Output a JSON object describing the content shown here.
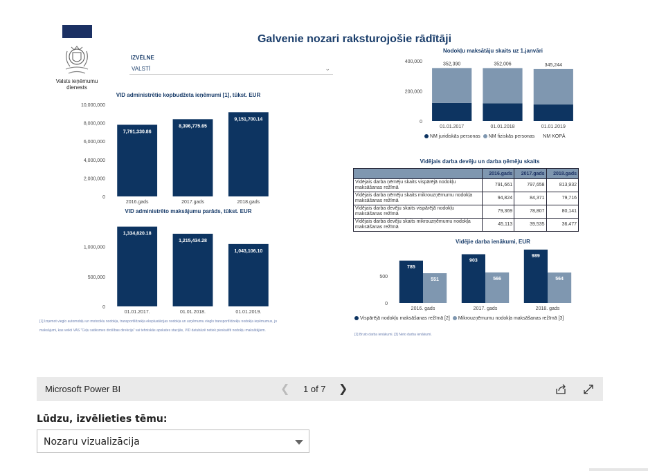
{
  "report": {
    "title": "Galvenie nozari raksturojošie rādītāji",
    "org_name": "Valsts ieņēmumu dienests",
    "selector": {
      "label": "IZVĒLNE",
      "value": "VALSTĪ"
    },
    "footnote_left_1": "[1] Izņemot vieglo automobiļu un motociklu nodokļa, transportlīdzekļa ekspluatācijas nodokļa un uzņēmumu vieglo transportlīdzekļu nodokļa ieņēmumus, jo",
    "footnote_left_2": "maksājumi, kas veikti VAS \"Ceļu satiksmes drošības direkcija\" vai tehniskās apskates stacijās, VID datubāzē netiek pieskaitīti nodokļu maksātājiem.",
    "footnote_right": "[2] Bruto darba ienākumi.    [3] Neto darba ienākumi.",
    "table": {
      "title": "Vidējais darba devēju un darba ņēmēju skaits",
      "headers": [
        "",
        "2016.gads",
        "2017.gads",
        "2018.gads"
      ],
      "rows": [
        {
          "label": "Vidējais darba ņēmēju skaits vispārējā nodokļu maksāšanas režīmā",
          "v": [
            "791,661",
            "797,658",
            "813,932"
          ]
        },
        {
          "label": "Vidējais darba ņēmēju skaits mikrouzņēmumu nodokļa maksāšanas režīmā",
          "v": [
            "94,824",
            "84,371",
            "79,716"
          ]
        },
        {
          "label": "Vidējais darba devēju skaits vispārējā nodokļu maksāšanas režīmā",
          "v": [
            "79,369",
            "78,807",
            "80,141"
          ]
        },
        {
          "label": "Vidējais darba devēju skaits mikrouzņēmumu nodokļa maksāšanas režīmā",
          "v": [
            "45,113",
            "39,535",
            "36,477"
          ]
        }
      ]
    }
  },
  "chart_data": [
    {
      "type": "bar",
      "title": "VID administrētie kopbudžeta ieņēmumi [1], tūkst. EUR",
      "categories": [
        "2016.gads",
        "2017.gads",
        "2018.gads"
      ],
      "values": [
        7791330.86,
        8396775.65,
        9151700.14
      ],
      "value_labels": [
        "7,791,330.86",
        "8,396,775.65",
        "9,151,700.14"
      ],
      "ylim": [
        0,
        10000000
      ],
      "yticks": [
        0,
        2000000,
        4000000,
        6000000,
        8000000,
        10000000
      ],
      "ytick_labels": [
        "0",
        "2,000,000",
        "4,000,000",
        "6,000,000",
        "8,000,000",
        "10,000,000"
      ],
      "color": "#0d3461"
    },
    {
      "type": "bar",
      "title": "VID administrēto maksājumu parāds, tūkst. EUR",
      "categories": [
        "01.01.2017.",
        "01.01.2018.",
        "01.01.2019."
      ],
      "values": [
        1334820.18,
        1215434.28,
        1043106.1
      ],
      "value_labels": [
        "1,334,820.18",
        "1,215,434.28",
        "1,043,106.10"
      ],
      "ylim": [
        0,
        1400000
      ],
      "yticks": [
        0,
        500000,
        1000000
      ],
      "ytick_labels": [
        "0",
        "500,000",
        "1,000,000"
      ],
      "color": "#0d3461"
    },
    {
      "type": "bar",
      "stacked": true,
      "title": "Nodokļu maksātāju skaits uz 1.janvāri",
      "categories": [
        "01.01.2017",
        "01.01.2018",
        "01.01.2019"
      ],
      "series": [
        {
          "name": "NM juridiskās personas",
          "values": [
            120000,
            118000,
            110000
          ],
          "color": "#0d3461"
        },
        {
          "name": "NM fiziskās personas",
          "values": [
            232390,
            234006,
            235244
          ],
          "color": "#7f97b0"
        }
      ],
      "totals": [
        352390,
        352006,
        345244
      ],
      "total_labels": [
        "352,390",
        "352,006",
        "345,244"
      ],
      "total_legend": "NM KOPĀ",
      "ylim": [
        0,
        400000
      ],
      "yticks": [
        0,
        200000,
        400000
      ],
      "ytick_labels": [
        "0",
        "200,000",
        "400,000"
      ]
    },
    {
      "type": "bar",
      "title": "Vidējie darba ienākumi, EUR",
      "categories": [
        "2016. gads",
        "2017. gads",
        "2018. gads"
      ],
      "series": [
        {
          "name": "Vispārējā nodokļu maksāšanas režīmā [2]",
          "values": [
            785,
            903,
            989
          ],
          "color": "#0d3461"
        },
        {
          "name": "Mikrouzņēmumu nodokļa maksāšanas režīmā [3]",
          "values": [
            551,
            566,
            564
          ],
          "color": "#7f97b0"
        }
      ],
      "ylim": [
        0,
        1000
      ],
      "yticks": [
        0,
        500
      ],
      "ytick_labels": [
        "0",
        "500"
      ]
    }
  ],
  "pbi": {
    "brand": "Microsoft Power BI",
    "page_indicator": "1 of 7",
    "prev_icon": "chevron-left-icon",
    "next_icon": "chevron-right-icon",
    "share_icon": "share-icon",
    "fullscreen_icon": "fullscreen-icon"
  },
  "theme": {
    "label": "Lūdzu, izvēlieties tēmu:",
    "selected": "Nozaru vizualizācija"
  }
}
